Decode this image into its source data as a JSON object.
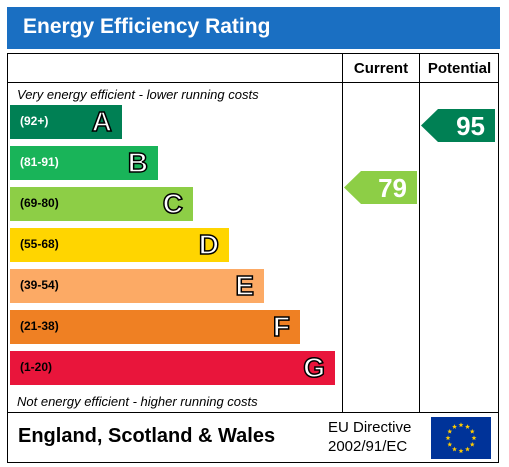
{
  "chart_data": {
    "type": "bar",
    "title": "Energy Efficiency Rating",
    "columns": [
      "Current",
      "Potential"
    ],
    "top_note": "Very energy efficient - lower running costs",
    "bottom_note": "Not energy efficient - higher running costs",
    "bands": [
      {
        "range": "(92+)",
        "letter": "A",
        "color": "#008054"
      },
      {
        "range": "(81-91)",
        "letter": "B",
        "color": "#19b459"
      },
      {
        "range": "(69-80)",
        "letter": "C",
        "color": "#8dce46"
      },
      {
        "range": "(55-68)",
        "letter": "D",
        "color": "#ffd500"
      },
      {
        "range": "(39-54)",
        "letter": "E",
        "color": "#fcaa65"
      },
      {
        "range": "(21-38)",
        "letter": "F",
        "color": "#ef8023"
      },
      {
        "range": "(1-20)",
        "letter": "G",
        "color": "#e9153b"
      }
    ],
    "current": {
      "value": "79",
      "color": "#8dce46"
    },
    "potential": {
      "value": "95",
      "color": "#008054"
    }
  },
  "footer": {
    "region": "England, Scotland & Wales",
    "directive_line1": "EU Directive",
    "directive_line2": "2002/91/EC"
  },
  "icons": {
    "flag": "eu-flag-icon"
  },
  "colors": {
    "header": "#1a6fc2",
    "flag_blue": "#003399",
    "flag_star": "#ffcc00"
  }
}
